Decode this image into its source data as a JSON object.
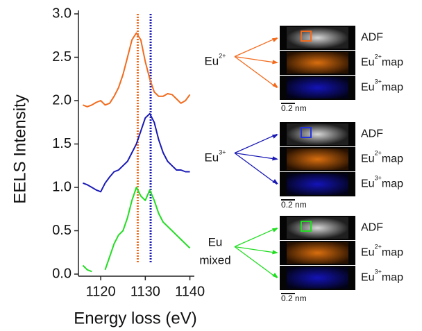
{
  "chart_data": {
    "type": "line",
    "xlabel": "Energy loss (eV)",
    "ylabel": "EELS Intensity",
    "x": [
      1116,
      1117,
      1118,
      1119,
      1120,
      1121,
      1122,
      1123,
      1124,
      1125,
      1126,
      1127,
      1128,
      1129,
      1130,
      1131,
      1132,
      1133,
      1134,
      1135,
      1136,
      1137,
      1138,
      1139,
      1140
    ],
    "series": [
      {
        "color": "#f26b1d",
        "values": [
          1.95,
          1.93,
          1.95,
          1.98,
          2.0,
          1.95,
          1.97,
          2.05,
          2.15,
          2.3,
          2.5,
          2.7,
          2.78,
          2.7,
          2.45,
          2.25,
          2.1,
          2.05,
          2.05,
          2.08,
          2.07,
          2.02,
          1.97,
          2.0,
          2.07
        ]
      },
      {
        "color": "#1a1ab5",
        "values": [
          1.05,
          1.03,
          1.0,
          0.97,
          0.95,
          1.05,
          1.12,
          1.18,
          1.2,
          1.25,
          1.3,
          1.4,
          1.5,
          1.65,
          1.8,
          1.85,
          1.75,
          1.55,
          1.4,
          1.3,
          1.25,
          1.2,
          1.2,
          1.18,
          1.18
        ]
      },
      {
        "color": "#22dd22",
        "values": [
          0.1,
          0.05,
          0.03,
          null,
          null,
          0.05,
          0.2,
          0.35,
          0.45,
          0.5,
          0.65,
          0.85,
          1.0,
          0.9,
          0.85,
          0.97,
          0.85,
          0.7,
          0.6,
          0.55,
          0.5,
          0.45,
          0.4,
          0.35,
          0.3
        ]
      }
    ],
    "vlines": [
      {
        "x": 1128.3,
        "color": "#f26b1d"
      },
      {
        "x": 1131.2,
        "color": "#1a1ab5"
      }
    ],
    "xlim": [
      1115,
      1141
    ],
    "ylim": [
      0,
      3.0
    ],
    "xticks": [
      1120,
      1130,
      1140
    ],
    "yticks": [
      {
        "value": 0,
        "label": "0.0"
      },
      0.5,
      {
        "value": 1,
        "label": "1.0"
      },
      1.5,
      {
        "value": 2,
        "label": "2.0"
      },
      2.5,
      {
        "value": 3,
        "label": "3.0"
      }
    ]
  },
  "panels": [
    {
      "group": [
        "Eu"
      ],
      "sup": "2+",
      "color": "#f26b1d",
      "box": "#f26b1d",
      "rows": [
        {
          "label": "ADF"
        },
        {
          "label": "Eu",
          "sup": "2+",
          "suffix": "map"
        },
        {
          "label": "Eu",
          "sup": "3+",
          "suffix": "map"
        }
      ],
      "scale": "0.2 nm"
    },
    {
      "group": [
        "Eu"
      ],
      "sup": "3+",
      "color": "#1a1ab5",
      "box": "#2233dd",
      "rows": [
        {
          "label": "ADF"
        },
        {
          "label": "Eu",
          "sup": "2+",
          "suffix": "map"
        },
        {
          "label": "Eu",
          "sup": "3+",
          "suffix": "map"
        }
      ],
      "scale": "0.2 nm"
    },
    {
      "group": [
        "Eu",
        "mixed"
      ],
      "color": "#22dd22",
      "box": "#22dd22",
      "rows": [
        {
          "label": "ADF"
        },
        {
          "label": "Eu",
          "sup": "2+",
          "suffix": "map"
        },
        {
          "label": "Eu",
          "sup": "3+",
          "suffix": "map"
        }
      ],
      "scale": "0.2 nm"
    }
  ]
}
